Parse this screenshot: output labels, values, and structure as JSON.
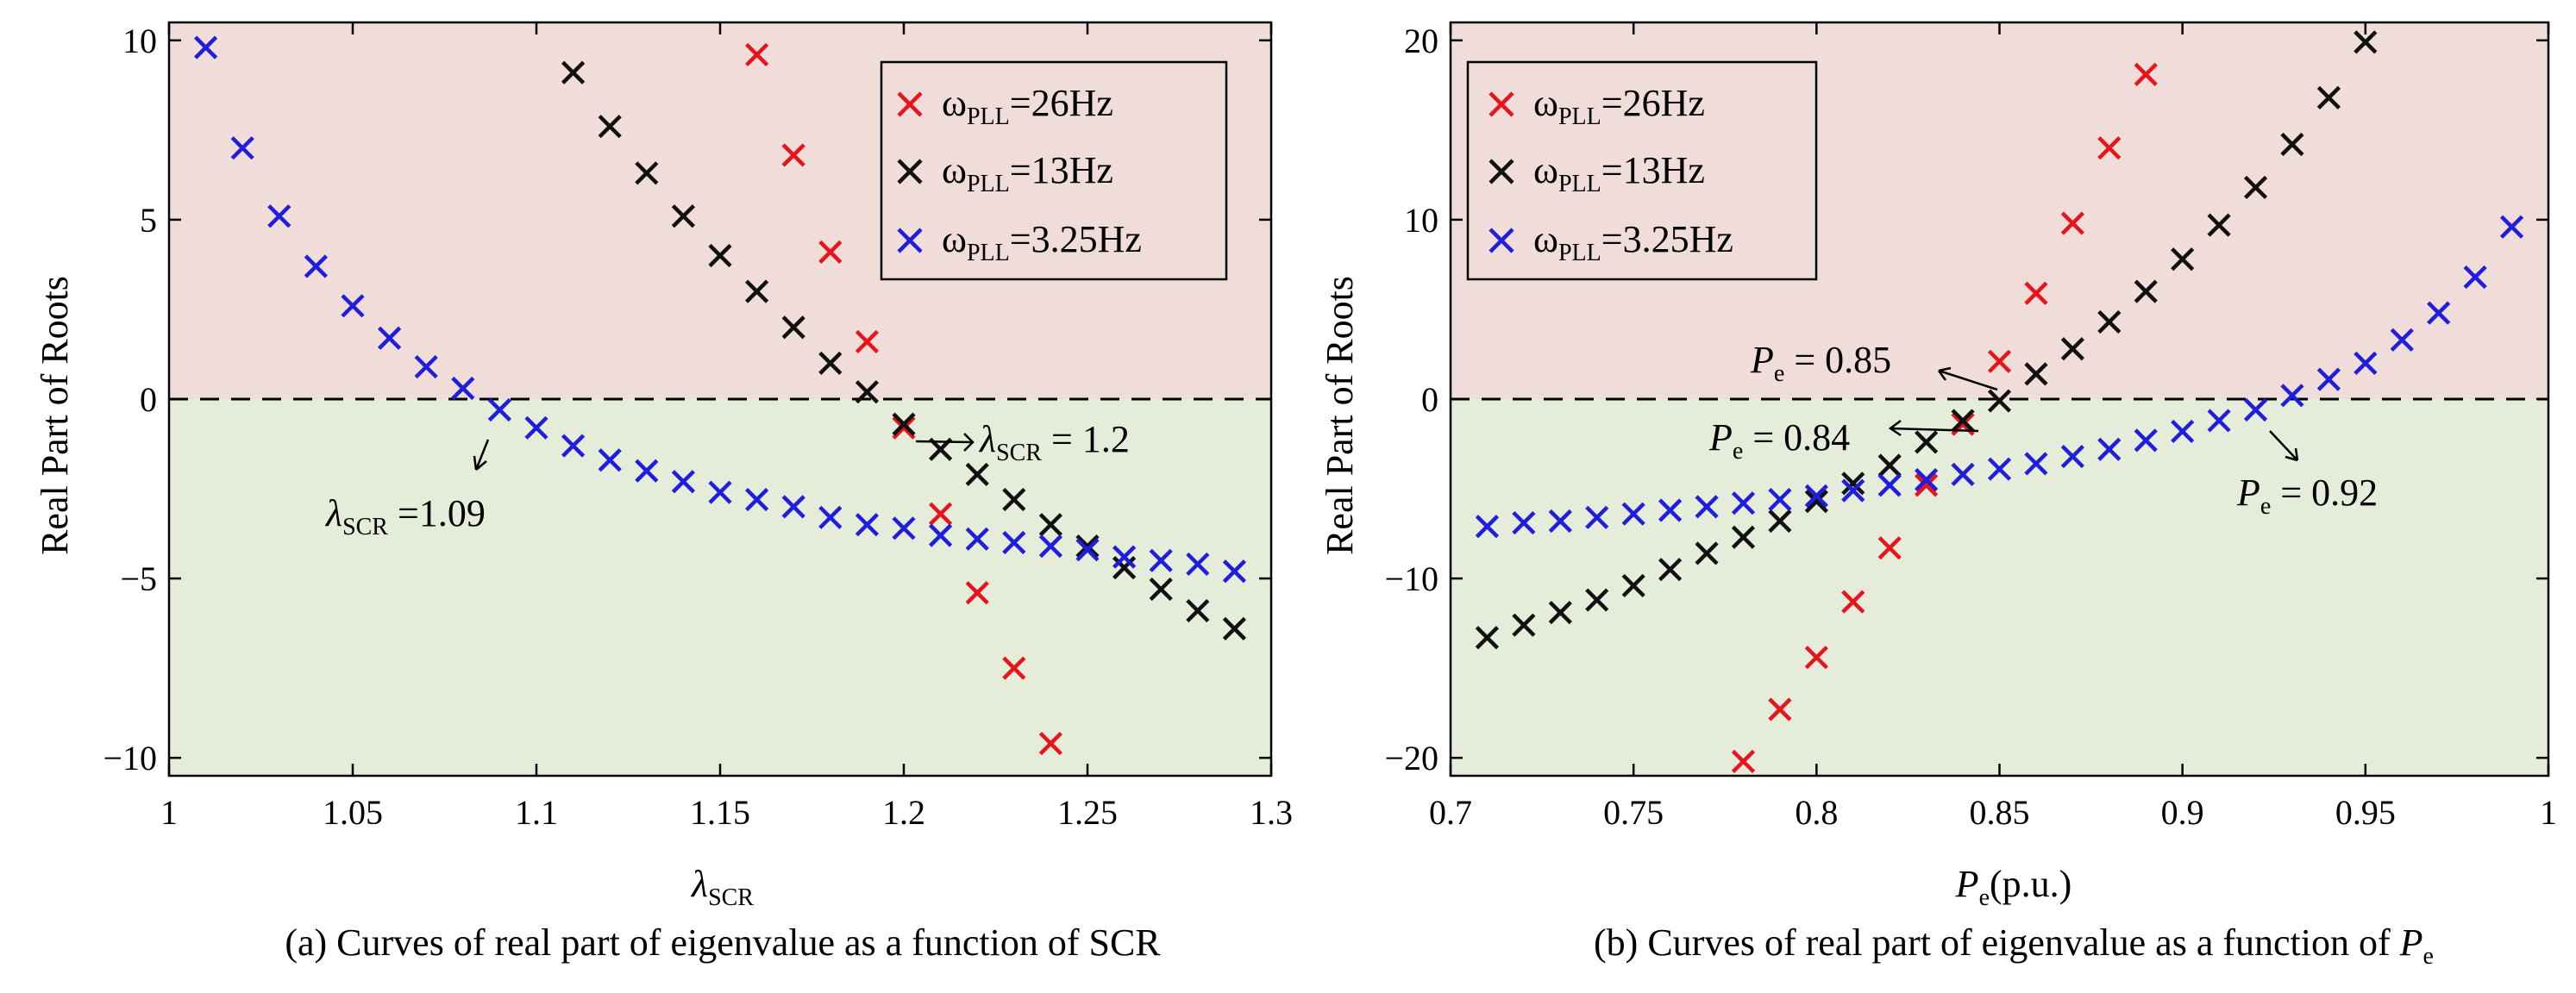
{
  "chart_data": [
    {
      "type": "scatter",
      "xlim": [
        1,
        1.3
      ],
      "ylim": [
        -10.5,
        10.5
      ],
      "xticks": [
        "1",
        "1.05",
        "1.1",
        "1.15",
        "1.2",
        "1.25",
        "1.3"
      ],
      "xtick_values": [
        1,
        1.05,
        1.1,
        1.15,
        1.2,
        1.25,
        1.3
      ],
      "yticks": [
        "10",
        "5",
        "0",
        "-5",
        "-10"
      ],
      "ytick_values": [
        10,
        5,
        0,
        -5,
        -10
      ],
      "ylabel": "Real Part of Roots",
      "xlabel": {
        "main": "λ",
        "sub": "SCR"
      },
      "caption": "(a) Curves of real part of eigenvalue as a function of SCR",
      "regions": {
        "unstable_color": "#f0dcd8",
        "stable_color": "#e6ecda"
      },
      "reference_line": 0,
      "legend": {
        "position": "top-right",
        "entries": [
          {
            "pre": "ω",
            "sub": "PLL",
            "post": "=26Hz"
          },
          {
            "pre": "ω",
            "sub": "PLL",
            "post": "=13Hz"
          },
          {
            "pre": "ω",
            "sub": "PLL",
            "post": "=3.25Hz"
          }
        ]
      },
      "series": [
        {
          "color": "#e8141b",
          "x": [
            1.16,
            1.17,
            1.18,
            1.19,
            1.2,
            1.21,
            1.22,
            1.23,
            1.24
          ],
          "y": [
            9.6,
            6.8,
            4.1,
            1.6,
            -0.8,
            -3.2,
            -5.4,
            -7.5,
            -9.6
          ]
        },
        {
          "color": "#111111",
          "x": [
            1.11,
            1.12,
            1.13,
            1.14,
            1.15,
            1.16,
            1.17,
            1.18,
            1.19,
            1.2,
            1.21,
            1.22,
            1.23,
            1.24,
            1.25,
            1.26,
            1.27,
            1.28,
            1.29
          ],
          "y": [
            9.1,
            7.6,
            6.3,
            5.1,
            4.0,
            3.0,
            2.0,
            1.0,
            0.2,
            -0.7,
            -1.4,
            -2.1,
            -2.8,
            -3.5,
            -4.1,
            -4.7,
            -5.3,
            -5.9,
            -6.4
          ]
        },
        {
          "color": "#1e1edc",
          "x": [
            1.01,
            1.02,
            1.03,
            1.04,
            1.05,
            1.06,
            1.07,
            1.08,
            1.09,
            1.1,
            1.11,
            1.12,
            1.13,
            1.14,
            1.15,
            1.16,
            1.17,
            1.18,
            1.19,
            1.2,
            1.21,
            1.22,
            1.23,
            1.24,
            1.25,
            1.26,
            1.27,
            1.28,
            1.29
          ],
          "y": [
            9.8,
            7.0,
            5.1,
            3.7,
            2.6,
            1.7,
            0.9,
            0.3,
            -0.3,
            -0.8,
            -1.3,
            -1.7,
            -2.0,
            -2.3,
            -2.6,
            -2.8,
            -3.0,
            -3.3,
            -3.5,
            -3.6,
            -3.8,
            -3.9,
            -4.0,
            -4.1,
            -4.2,
            -4.4,
            -4.5,
            -4.6,
            -4.8
          ]
        }
      ],
      "annotations": [
        {
          "pre": "λ",
          "sub": "SCR",
          "post": " =1.09",
          "arrow_to": [
            1.085,
            -0.6
          ]
        },
        {
          "pre": "λ",
          "sub": "SCR",
          "post": " = 1.2",
          "arrow_to": [
            1.2,
            -0.7
          ]
        }
      ]
    },
    {
      "type": "scatter",
      "xlim": [
        0.7,
        1
      ],
      "ylim": [
        -21,
        21
      ],
      "xticks": [
        "0.7",
        "0.75",
        "0.8",
        "0.85",
        "0.9",
        "0.95",
        "1"
      ],
      "xtick_values": [
        0.7,
        0.75,
        0.8,
        0.85,
        0.9,
        0.95,
        1
      ],
      "yticks": [
        "20",
        "10",
        "0",
        "-10",
        "-20"
      ],
      "ytick_values": [
        20,
        10,
        0,
        -10,
        -20
      ],
      "ylabel": "Real Part of Roots",
      "xlabel": {
        "main": "P",
        "sub": "e",
        "post": "(p.u.)"
      },
      "caption": {
        "text": "(b) Curves of real part of eigenvalue as a function of ",
        "italic": "P",
        "sub": "e"
      },
      "regions": {
        "unstable_color": "#f0dcd8",
        "stable_color": "#e6ecda"
      },
      "reference_line": 0,
      "legend": {
        "position": "top-left",
        "entries": [
          {
            "pre": "ω",
            "sub": "PLL",
            "post": "=26Hz"
          },
          {
            "pre": "ω",
            "sub": "PLL",
            "post": "=13Hz"
          },
          {
            "pre": "ω",
            "sub": "PLL",
            "post": "=3.25Hz"
          }
        ]
      },
      "series": [
        {
          "color": "#e8141b",
          "x": [
            0.78,
            0.79,
            0.8,
            0.81,
            0.82,
            0.83,
            0.84,
            0.85,
            0.86,
            0.87,
            0.88,
            0.89
          ],
          "y": [
            -20.2,
            -17.3,
            -14.4,
            -11.3,
            -8.3,
            -4.8,
            -1.4,
            2.1,
            5.9,
            9.8,
            14.0,
            18.1
          ]
        },
        {
          "color": "#111111",
          "x": [
            0.71,
            0.72,
            0.73,
            0.74,
            0.75,
            0.76,
            0.77,
            0.78,
            0.79,
            0.8,
            0.81,
            0.82,
            0.83,
            0.84,
            0.85,
            0.86,
            0.87,
            0.88,
            0.89,
            0.9,
            0.91,
            0.92,
            0.93,
            0.94,
            0.95
          ],
          "y": [
            -13.3,
            -12.6,
            -11.9,
            -11.2,
            -10.4,
            -9.5,
            -8.6,
            -7.7,
            -6.8,
            -5.7,
            -4.7,
            -3.7,
            -2.4,
            -1.2,
            -0.1,
            1.4,
            2.8,
            4.3,
            6.0,
            7.8,
            9.7,
            11.8,
            14.2,
            16.8,
            19.9
          ]
        },
        {
          "color": "#1e1edc",
          "x": [
            0.71,
            0.72,
            0.73,
            0.74,
            0.75,
            0.76,
            0.77,
            0.78,
            0.79,
            0.8,
            0.81,
            0.82,
            0.83,
            0.84,
            0.85,
            0.86,
            0.87,
            0.88,
            0.89,
            0.9,
            0.91,
            0.92,
            0.93,
            0.94,
            0.95,
            0.96,
            0.97,
            0.98,
            0.99
          ],
          "y": [
            -7.1,
            -6.9,
            -6.8,
            -6.6,
            -6.4,
            -6.2,
            -6.0,
            -5.8,
            -5.6,
            -5.4,
            -5.1,
            -4.8,
            -4.5,
            -4.2,
            -3.9,
            -3.6,
            -3.2,
            -2.8,
            -2.3,
            -1.8,
            -1.2,
            -0.6,
            0.2,
            1.1,
            2.0,
            3.3,
            4.8,
            6.8,
            9.6
          ]
        }
      ],
      "annotations": [
        {
          "pre": "P",
          "sub": "e",
          "post": " = 0.85",
          "arrow_to": [
            0.85,
            -0.1
          ]
        },
        {
          "pre": "P",
          "sub": "e",
          "post": " = 0.84",
          "arrow_to": [
            0.84,
            -1.3
          ]
        },
        {
          "pre": "P",
          "sub": "e",
          "post": " = 0.92",
          "arrow_to": [
            0.92,
            -0.6
          ]
        }
      ]
    }
  ]
}
